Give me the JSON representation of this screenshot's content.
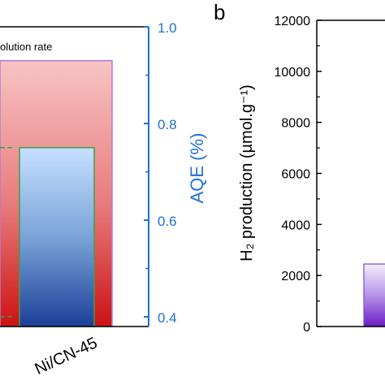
{
  "panels": [
    {
      "chart_data": {
        "type": "bar",
        "legend_text": "olution rate",
        "categories": [
          "Ni/CN-45"
        ],
        "series": [
          {
            "values": [
              0.93
            ]
          },
          {
            "values": [
              0.75
            ]
          }
        ],
        "right_axis": {
          "label": "AQE (%)",
          "range": [
            0.38,
            1.0
          ],
          "ticks": [
            "1.0",
            "0.8",
            "0.6",
            "0.4"
          ]
        },
        "grid": false
      }
    },
    {
      "panel_letter": "b",
      "chart_data": {
        "type": "bar",
        "y_axis": {
          "label": "H₂ production (µmol.g⁻¹)",
          "range": [
            0,
            12000
          ],
          "ticks": [
            "0",
            "2000",
            "4000",
            "6000",
            "8000",
            "10000",
            "12000"
          ]
        },
        "visible_bar_values": [
          2450
        ],
        "grid": false
      }
    }
  ],
  "colors": {
    "aqe_axis": "#1e6fd6",
    "pink_top": "#f8c4c4",
    "red_bottom": "#cc1212",
    "pink_border": "#b07adf",
    "bar_blue_top": "#c6e0ff",
    "bar_blue_bottom": "#1c3f99",
    "bar_blue_border": "#3aa04a",
    "purple_top": "#f4eefc",
    "purple_bottom": "#6a1bc4"
  }
}
